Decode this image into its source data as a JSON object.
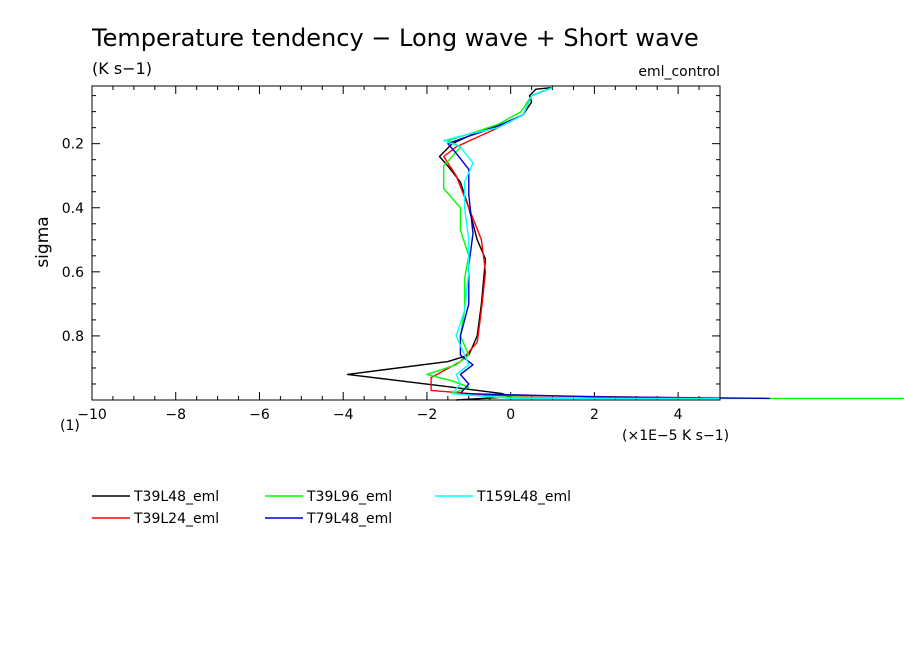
{
  "chart_data": {
    "type": "line",
    "title": "Temperature tendency − Long wave + Short wave",
    "subtitle": "(K s−1)",
    "experiment": "eml_control",
    "ylabel": "sigma",
    "xunit": "(×1E−5 K s−1)",
    "corner_label": "(1)",
    "xlim": [
      -10,
      5
    ],
    "ylim": [
      1.0,
      0.02
    ],
    "xticks": [
      "−10",
      "−8",
      "−6",
      "−4",
      "−2",
      "0",
      "2",
      "4"
    ],
    "xtick_values": [
      -10,
      -8,
      -6,
      -4,
      -2,
      0,
      2,
      4
    ],
    "yticks": [
      "0.2",
      "0.4",
      "0.6",
      "0.8"
    ],
    "ytick_values": [
      0.2,
      0.4,
      0.6,
      0.8
    ],
    "series": [
      {
        "name": "T39L48_eml",
        "color": "#000000",
        "points": [
          [
            1.0,
            0.025
          ],
          [
            0.6,
            0.03
          ],
          [
            0.45,
            0.05
          ],
          [
            0.5,
            0.07
          ],
          [
            0.3,
            0.11
          ],
          [
            -0.2,
            0.14
          ],
          [
            -0.9,
            0.17
          ],
          [
            -1.4,
            0.2
          ],
          [
            -1.7,
            0.24
          ],
          [
            -1.5,
            0.27
          ],
          [
            -1.2,
            0.32
          ],
          [
            -1.0,
            0.4
          ],
          [
            -0.8,
            0.5
          ],
          [
            -0.6,
            0.56
          ],
          [
            -0.7,
            0.7
          ],
          [
            -0.8,
            0.8
          ],
          [
            -1.0,
            0.86
          ],
          [
            -1.5,
            0.88
          ],
          [
            -3.9,
            0.92
          ],
          [
            -1.4,
            0.96
          ],
          [
            -0.2,
            0.98
          ],
          [
            0.0,
            0.99
          ],
          [
            -1.3,
            1.0
          ]
        ]
      },
      {
        "name": "T39L24_eml",
        "color": "#ff0000",
        "points": [
          [
            1.0,
            0.025
          ],
          [
            0.5,
            0.05
          ],
          [
            0.3,
            0.11
          ],
          [
            -0.3,
            0.15
          ],
          [
            -0.8,
            0.18
          ],
          [
            -1.3,
            0.21
          ],
          [
            -1.6,
            0.24
          ],
          [
            -1.3,
            0.3
          ],
          [
            -1.0,
            0.4
          ],
          [
            -0.7,
            0.5
          ],
          [
            -0.6,
            0.6
          ],
          [
            -0.7,
            0.72
          ],
          [
            -0.8,
            0.82
          ],
          [
            -1.2,
            0.88
          ],
          [
            -1.9,
            0.93
          ],
          [
            -1.9,
            0.97
          ],
          [
            -0.5,
            0.985
          ],
          [
            2.5,
            0.99
          ],
          [
            5.0,
            0.995
          ]
        ]
      },
      {
        "name": "T39L96_eml",
        "color": "#00ff00",
        "points": [
          [
            1.0,
            0.025
          ],
          [
            0.5,
            0.05
          ],
          [
            0.25,
            0.1
          ],
          [
            -0.3,
            0.14
          ],
          [
            -1.0,
            0.17
          ],
          [
            -1.5,
            0.19
          ],
          [
            -1.2,
            0.21
          ],
          [
            -1.6,
            0.27
          ],
          [
            -1.6,
            0.34
          ],
          [
            -1.2,
            0.4
          ],
          [
            -1.2,
            0.47
          ],
          [
            -1.0,
            0.55
          ],
          [
            -1.1,
            0.62
          ],
          [
            -1.1,
            0.72
          ],
          [
            -1.2,
            0.8
          ],
          [
            -1.0,
            0.86
          ],
          [
            -1.3,
            0.89
          ],
          [
            -2.0,
            0.92
          ],
          [
            -1.4,
            0.94
          ],
          [
            -1.0,
            0.96
          ],
          [
            -1.4,
            0.98
          ],
          [
            -0.5,
            0.99
          ],
          [
            2.0,
            0.995
          ],
          [
            9.5,
            0.995
          ]
        ]
      },
      {
        "name": "T79L48_eml",
        "color": "#0000cc",
        "points": [
          [
            1.0,
            0.025
          ],
          [
            0.5,
            0.05
          ],
          [
            0.3,
            0.11
          ],
          [
            -0.4,
            0.15
          ],
          [
            -1.3,
            0.19
          ],
          [
            -1.5,
            0.2
          ],
          [
            -1.3,
            0.23
          ],
          [
            -1.0,
            0.28
          ],
          [
            -1.0,
            0.36
          ],
          [
            -0.9,
            0.48
          ],
          [
            -1.0,
            0.58
          ],
          [
            -1.0,
            0.7
          ],
          [
            -1.2,
            0.8
          ],
          [
            -1.2,
            0.86
          ],
          [
            -0.9,
            0.89
          ],
          [
            -1.2,
            0.92
          ],
          [
            -1.0,
            0.95
          ],
          [
            -1.2,
            0.98
          ],
          [
            2.0,
            0.99
          ],
          [
            6.2,
            0.995
          ]
        ]
      },
      {
        "name": "T159L48_eml",
        "color": "#00ffff",
        "points": [
          [
            1.0,
            0.025
          ],
          [
            0.5,
            0.05
          ],
          [
            0.3,
            0.11
          ],
          [
            -0.3,
            0.15
          ],
          [
            -1.0,
            0.17
          ],
          [
            -1.6,
            0.19
          ],
          [
            -1.2,
            0.21
          ],
          [
            -0.9,
            0.26
          ],
          [
            -1.1,
            0.32
          ],
          [
            -1.1,
            0.4
          ],
          [
            -1.0,
            0.5
          ],
          [
            -1.0,
            0.6
          ],
          [
            -1.1,
            0.72
          ],
          [
            -1.3,
            0.8
          ],
          [
            -1.1,
            0.86
          ],
          [
            -1.0,
            0.89
          ],
          [
            -1.3,
            0.92
          ],
          [
            -1.2,
            0.95
          ],
          [
            -1.4,
            0.98
          ],
          [
            0.0,
            0.995
          ],
          [
            5.0,
            0.995
          ]
        ]
      }
    ]
  }
}
